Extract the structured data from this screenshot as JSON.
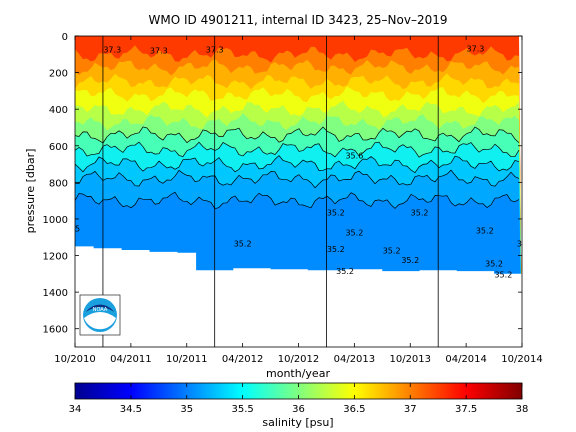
{
  "chart_data": {
    "type": "heatmap",
    "title": "WMO ID 4901211, internal ID 3423, 25–Nov–2019",
    "xlabel": "month/year",
    "ylabel": "pressure [dbar]",
    "x_ticks": [
      "10/2010",
      "04/2011",
      "10/2011",
      "04/2012",
      "10/2012",
      "04/2013",
      "10/2013",
      "04/2014",
      "10/2014"
    ],
    "xlim": [
      "10/2010",
      "10/2014"
    ],
    "y_ticks": [
      0,
      200,
      400,
      600,
      800,
      1000,
      1200,
      1400,
      1600
    ],
    "ylim": [
      1700,
      0
    ],
    "y_reversed": true,
    "year_markers": [
      "01/2011",
      "01/2012",
      "01/2013",
      "01/2014"
    ],
    "colorbar": {
      "label": "salinity [psu]",
      "ticks": [
        34,
        34.5,
        35,
        35.5,
        36,
        36.5,
        37,
        37.5,
        38
      ],
      "range": [
        34,
        38
      ],
      "colormap": "jet"
    },
    "profile_bottom_dbar": [
      {
        "date": "10/2010",
        "pressure": 1150
      },
      {
        "date": "12/2010",
        "pressure": 1160
      },
      {
        "date": "03/2011",
        "pressure": 1170
      },
      {
        "date": "06/2011",
        "pressure": 1180
      },
      {
        "date": "09/2011",
        "pressure": 1185
      },
      {
        "date": "11/2011",
        "pressure": 1280
      },
      {
        "date": "03/2012",
        "pressure": 1270
      },
      {
        "date": "07/2012",
        "pressure": 1275
      },
      {
        "date": "11/2012",
        "pressure": 1280
      },
      {
        "date": "03/2013",
        "pressure": 1275
      },
      {
        "date": "07/2013",
        "pressure": 1285
      },
      {
        "date": "11/2013",
        "pressure": 1280
      },
      {
        "date": "03/2014",
        "pressure": 1285
      },
      {
        "date": "07/2014",
        "pressure": 1300
      },
      {
        "date": "10/2014",
        "pressure": 1290
      }
    ],
    "layers": [
      {
        "salinity": 37.3,
        "color": "#ff3a00",
        "top_dbar": 0
      },
      {
        "salinity": 37.0,
        "color": "#ff8000",
        "top_dbar": 100
      },
      {
        "salinity": 36.8,
        "color": "#ffb000",
        "top_dbar": 170
      },
      {
        "salinity": 36.6,
        "color": "#ffd800",
        "top_dbar": 250
      },
      {
        "salinity": 36.4,
        "color": "#f0ff10",
        "top_dbar": 320
      },
      {
        "salinity": 36.2,
        "color": "#b8ff48",
        "top_dbar": 400
      },
      {
        "salinity": 36.0,
        "color": "#80ff80",
        "top_dbar": 470
      },
      {
        "salinity": 35.8,
        "color": "#48ffb8",
        "top_dbar": 540
      },
      {
        "salinity": 35.6,
        "color": "#10f0f0",
        "top_dbar": 620
      },
      {
        "salinity": 35.4,
        "color": "#00c8ff",
        "top_dbar": 700
      },
      {
        "salinity": 35.3,
        "color": "#00a8ff",
        "top_dbar": 780
      },
      {
        "salinity": 35.2,
        "color": "#008cff",
        "top_dbar": 900
      }
    ],
    "contour_labels": [
      {
        "text": "35.6",
        "date": "04/2013",
        "pressure": 670
      },
      {
        "text": "35.2",
        "date": "02/2013",
        "pressure": 980
      },
      {
        "text": "35.2",
        "date": "11/2013",
        "pressure": 980
      },
      {
        "text": "35.2",
        "date": "04/2013",
        "pressure": 1090
      },
      {
        "text": "35.2",
        "date": "06/2014",
        "pressure": 1080
      },
      {
        "text": "35.2",
        "date": "04/2012",
        "pressure": 1150
      },
      {
        "text": "35.2",
        "date": "02/2013",
        "pressure": 1180
      },
      {
        "text": "35.2",
        "date": "08/2013",
        "pressure": 1190
      },
      {
        "text": "35.2",
        "date": "10/2013",
        "pressure": 1240
      },
      {
        "text": "35.2",
        "date": "03/2013",
        "pressure": 1300
      },
      {
        "text": "35.2",
        "date": "07/2014",
        "pressure": 1260
      },
      {
        "text": "35.2",
        "date": "08/2014",
        "pressure": 1320
      },
      {
        "text": "35",
        "date": "10/2010",
        "pressure": 1070
      },
      {
        "text": "35",
        "date": "10/2014",
        "pressure": 1150
      },
      {
        "text": "37.3",
        "date": "02/2011",
        "pressure": 90
      },
      {
        "text": "37.3",
        "date": "07/2011",
        "pressure": 95
      },
      {
        "text": "37.3",
        "date": "01/2012",
        "pressure": 90
      },
      {
        "text": "37.3",
        "date": "05/2014",
        "pressure": 85
      }
    ],
    "logo_text": "NOAA",
    "grid": false
  }
}
